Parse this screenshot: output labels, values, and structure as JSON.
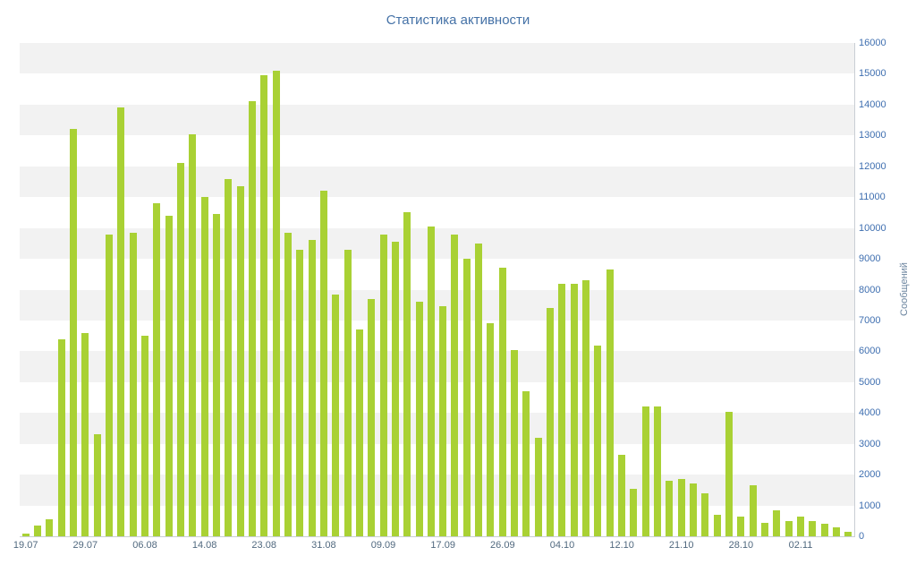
{
  "chart_data": {
    "type": "bar",
    "title": "Статистика активности",
    "ylabel": "Сообщений",
    "xlabel": "",
    "ylim": [
      0,
      16000
    ],
    "y_ticks": [
      0,
      1000,
      2000,
      3000,
      4000,
      5000,
      6000,
      7000,
      8000,
      9000,
      10000,
      11000,
      12000,
      13000,
      14000,
      15000,
      16000
    ],
    "x_tick_labels": [
      "19.07",
      "29.07",
      "06.08",
      "14.08",
      "23.08",
      "31.08",
      "09.09",
      "17.09",
      "26.09",
      "04.10",
      "12.10",
      "21.10",
      "28.10",
      "02.11"
    ],
    "x_tick_indices": [
      0,
      5,
      10,
      15,
      20,
      25,
      30,
      35,
      40,
      45,
      50,
      55,
      60,
      65
    ],
    "values": [
      100,
      350,
      550,
      6400,
      13200,
      6600,
      3300,
      9800,
      13900,
      9850,
      6500,
      10800,
      10400,
      12100,
      13050,
      11000,
      10450,
      11600,
      11350,
      14100,
      14950,
      15100,
      9850,
      9300,
      9600,
      11200,
      7850,
      9300,
      6700,
      7700,
      9800,
      9550,
      10500,
      7600,
      10050,
      7450,
      9800,
      9000,
      9500,
      6900,
      8700,
      6050,
      4700,
      3200,
      7400,
      8200,
      8200,
      8300,
      6200,
      8650,
      2650,
      1550,
      4200,
      4200,
      1800,
      1850,
      1700,
      1400,
      700,
      4050,
      650,
      1650,
      450,
      850,
      500,
      650,
      500,
      400,
      300,
      150
    ],
    "legend": "none",
    "grid": "alternating-horizontal-bands",
    "legend_position": "none",
    "colors": {
      "bar": "#a9d134",
      "band": "#f2f2f2",
      "axis_line": "#c9ced4",
      "title": "#4572a7",
      "y_tick": "#3f6fb0",
      "x_tick": "#51697f",
      "y_title": "#6d86a0"
    }
  }
}
